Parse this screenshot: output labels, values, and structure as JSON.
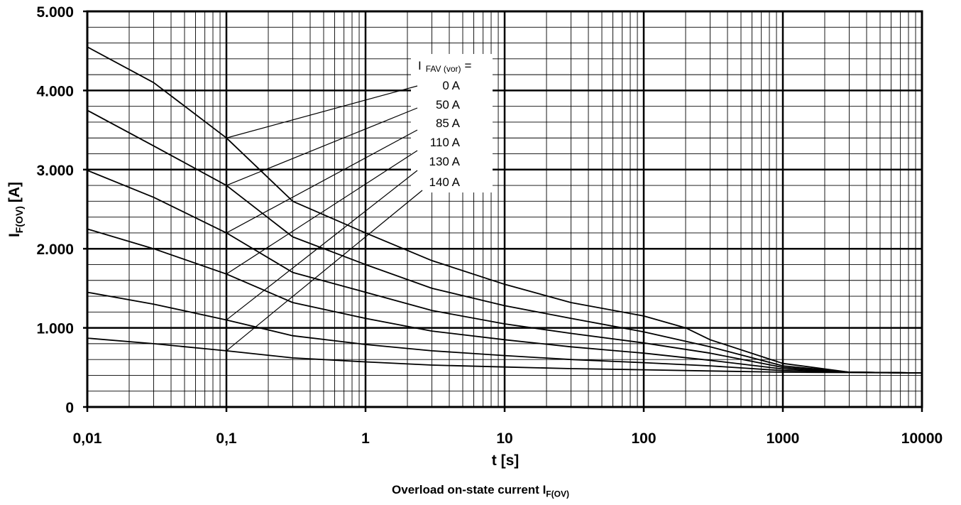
{
  "chart_data": {
    "type": "line",
    "xscale": "log",
    "xlim": [
      0.01,
      10000
    ],
    "ylim": [
      0,
      5000
    ],
    "xticks": [
      "0,01",
      "0,1",
      "1",
      "10",
      "100",
      "1000",
      "10000"
    ],
    "yticks": [
      "0",
      "1.000",
      "2.000",
      "3.000",
      "4.000",
      "5.000"
    ],
    "xlabel": "t [s]",
    "ylabel": "I",
    "ylabel_sub": "F(OV)",
    "ylabel_unit": "[A]",
    "caption": "Overload on-state current I",
    "caption_sub": "F(OV)",
    "grid": true,
    "legend_title": "I",
    "legend_title_sub": "FAV (vor)",
    "legend_title_suffix": "=",
    "series": [
      {
        "name": "0 A",
        "x": [
          0.01,
          0.03,
          0.1,
          0.3,
          1,
          3,
          10,
          30,
          100,
          200,
          300,
          1000,
          3000,
          10000
        ],
        "y": [
          4550,
          4100,
          3400,
          2600,
          2200,
          1850,
          1550,
          1320,
          1150,
          1000,
          850,
          550,
          440,
          430
        ]
      },
      {
        "name": "50 A",
        "x": [
          0.01,
          0.03,
          0.1,
          0.3,
          1,
          3,
          10,
          30,
          100,
          300,
          1000,
          3000,
          10000
        ],
        "y": [
          3750,
          3300,
          2800,
          2150,
          1800,
          1500,
          1280,
          1120,
          950,
          760,
          520,
          440,
          430
        ]
      },
      {
        "name": "85 A",
        "x": [
          0.01,
          0.03,
          0.1,
          0.3,
          1,
          3,
          10,
          30,
          100,
          300,
          1000,
          3000,
          10000
        ],
        "y": [
          2990,
          2650,
          2200,
          1700,
          1450,
          1220,
          1050,
          930,
          810,
          680,
          500,
          440,
          430
        ]
      },
      {
        "name": "110 A",
        "x": [
          0.01,
          0.03,
          0.1,
          0.3,
          1,
          3,
          10,
          30,
          100,
          300,
          1000,
          3000,
          10000
        ],
        "y": [
          2250,
          2000,
          1680,
          1320,
          1120,
          960,
          850,
          760,
          680,
          590,
          480,
          440,
          430
        ]
      },
      {
        "name": "130 A",
        "x": [
          0.01,
          0.03,
          0.1,
          0.3,
          1,
          3,
          10,
          30,
          100,
          300,
          1000,
          3000,
          10000
        ],
        "y": [
          1450,
          1300,
          1100,
          900,
          790,
          710,
          650,
          600,
          560,
          520,
          460,
          440,
          430
        ]
      },
      {
        "name": "140 A",
        "x": [
          0.01,
          0.03,
          0.1,
          0.3,
          1,
          3,
          10,
          30,
          100,
          300,
          1000,
          3000,
          10000
        ],
        "y": [
          870,
          800,
          710,
          620,
          570,
          530,
          505,
          485,
          470,
          455,
          440,
          435,
          430
        ]
      }
    ]
  }
}
